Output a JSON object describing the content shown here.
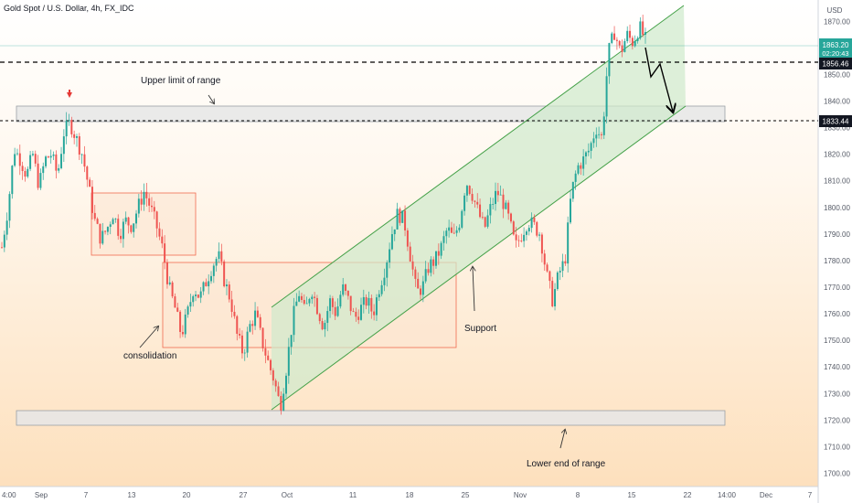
{
  "chart_data": {
    "type": "candlestick",
    "title": "Gold Spot / U.S. Dollar, 4h, FX_IDC",
    "currency": "USD",
    "price_axis": {
      "range": [
        1695,
        1878
      ],
      "ticks": [
        1700,
        1710,
        1720,
        1730,
        1740,
        1750,
        1760,
        1770,
        1780,
        1790,
        1800,
        1810,
        1820,
        1830,
        1840,
        1850,
        1860,
        1870
      ]
    },
    "time_axis": {
      "ticks": [
        "4:00",
        "Sep",
        "7",
        "13",
        "20",
        "27",
        "Oct",
        "11",
        "18",
        "25",
        "Nov",
        "8",
        "15",
        "22",
        "14:00",
        "Dec",
        "7"
      ]
    },
    "price_labels": {
      "current_price": "1863.20",
      "countdown": "02:20:43",
      "line_1": "1856.46",
      "line_2": "1833.44"
    },
    "close_path": [
      1785,
      1800,
      1822,
      1818,
      1812,
      1820,
      1808,
      1818,
      1820,
      1812,
      1828,
      1832,
      1826,
      1820,
      1808,
      1795,
      1788,
      1792,
      1798,
      1790,
      1795,
      1793,
      1800,
      1806,
      1800,
      1793,
      1784,
      1770,
      1762,
      1752,
      1760,
      1770,
      1766,
      1772,
      1778,
      1782,
      1772,
      1765,
      1752,
      1745,
      1755,
      1760,
      1750,
      1742,
      1735,
      1725,
      1740,
      1758,
      1768,
      1760,
      1770,
      1762,
      1755,
      1765,
      1760,
      1770,
      1765,
      1758,
      1762,
      1765,
      1760,
      1770,
      1778,
      1790,
      1798,
      1795,
      1782,
      1768,
      1770,
      1778,
      1780,
      1785,
      1792,
      1788,
      1795,
      1810,
      1805,
      1798,
      1792,
      1800,
      1806,
      1802,
      1795,
      1785,
      1790,
      1795,
      1793,
      1790,
      1775,
      1765,
      1775,
      1780,
      1805,
      1815,
      1818,
      1822,
      1830,
      1826,
      1858,
      1866,
      1858,
      1865,
      1862,
      1868,
      1863
    ],
    "annotations": {
      "upper_limit": "Upper limit of range",
      "consolidation": "consolidation",
      "support": "Support",
      "lower_end": "Lower end of range"
    },
    "colors": {
      "up": "#26a69a",
      "down": "#ef5350",
      "channel_fill": "#d4edd6",
      "channel_line": "#43a047",
      "range_fill": "#e8e8e8",
      "box_line": "#f06b50"
    }
  }
}
